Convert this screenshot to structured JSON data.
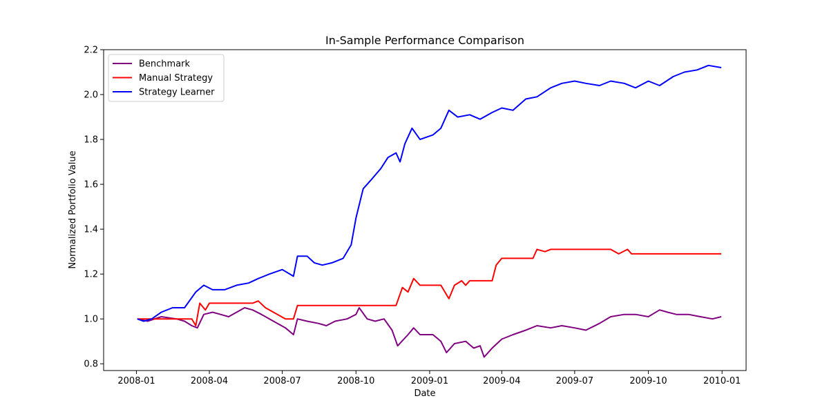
{
  "chart_data": {
    "type": "line",
    "title": "In-Sample Performance Comparison",
    "xlabel": "Date",
    "ylabel": "Normalized Portfolio Value",
    "xlim": [
      "2007-11-21",
      "2010-01-31"
    ],
    "ylim": [
      0.77,
      2.2
    ],
    "x_ticks": [
      "2008-01",
      "2008-04",
      "2008-07",
      "2008-10",
      "2009-01",
      "2009-04",
      "2009-07",
      "2009-10",
      "2010-01"
    ],
    "y_ticks": [
      "0.8",
      "1.0",
      "1.2",
      "1.4",
      "1.6",
      "1.8",
      "2.0",
      "2.2"
    ],
    "grid": false,
    "legend": "upper-left",
    "series": [
      {
        "name": "Benchmark",
        "color": "#800080",
        "points": [
          [
            "2008-01-02",
            1.0
          ],
          [
            "2008-01-15",
            0.99
          ],
          [
            "2008-02-01",
            1.01
          ],
          [
            "2008-02-20",
            1.0
          ],
          [
            "2008-03-01",
            0.99
          ],
          [
            "2008-03-10",
            0.97
          ],
          [
            "2008-03-17",
            0.96
          ],
          [
            "2008-03-25",
            1.02
          ],
          [
            "2008-04-05",
            1.03
          ],
          [
            "2008-04-15",
            1.02
          ],
          [
            "2008-04-25",
            1.01
          ],
          [
            "2008-05-05",
            1.03
          ],
          [
            "2008-05-15",
            1.05
          ],
          [
            "2008-05-25",
            1.04
          ],
          [
            "2008-06-05",
            1.02
          ],
          [
            "2008-06-15",
            1.0
          ],
          [
            "2008-06-25",
            0.98
          ],
          [
            "2008-07-05",
            0.96
          ],
          [
            "2008-07-15",
            0.93
          ],
          [
            "2008-07-20",
            1.0
          ],
          [
            "2008-08-01",
            0.99
          ],
          [
            "2008-08-15",
            0.98
          ],
          [
            "2008-08-25",
            0.97
          ],
          [
            "2008-09-05",
            0.99
          ],
          [
            "2008-09-20",
            1.0
          ],
          [
            "2008-10-01",
            1.02
          ],
          [
            "2008-10-05",
            1.05
          ],
          [
            "2008-10-15",
            1.0
          ],
          [
            "2008-10-25",
            0.99
          ],
          [
            "2008-11-05",
            1.0
          ],
          [
            "2008-11-15",
            0.95
          ],
          [
            "2008-11-22",
            0.88
          ],
          [
            "2008-12-05",
            0.93
          ],
          [
            "2008-12-12",
            0.96
          ],
          [
            "2008-12-20",
            0.93
          ],
          [
            "2009-01-05",
            0.93
          ],
          [
            "2009-01-15",
            0.9
          ],
          [
            "2009-01-22",
            0.85
          ],
          [
            "2009-02-01",
            0.89
          ],
          [
            "2009-02-15",
            0.9
          ],
          [
            "2009-02-25",
            0.87
          ],
          [
            "2009-03-05",
            0.88
          ],
          [
            "2009-03-10",
            0.83
          ],
          [
            "2009-03-20",
            0.87
          ],
          [
            "2009-04-01",
            0.91
          ],
          [
            "2009-04-15",
            0.93
          ],
          [
            "2009-05-01",
            0.95
          ],
          [
            "2009-05-15",
            0.97
          ],
          [
            "2009-06-01",
            0.96
          ],
          [
            "2009-06-15",
            0.97
          ],
          [
            "2009-07-01",
            0.96
          ],
          [
            "2009-07-15",
            0.95
          ],
          [
            "2009-08-01",
            0.98
          ],
          [
            "2009-08-15",
            1.01
          ],
          [
            "2009-09-01",
            1.02
          ],
          [
            "2009-09-15",
            1.02
          ],
          [
            "2009-10-01",
            1.01
          ],
          [
            "2009-10-15",
            1.04
          ],
          [
            "2009-10-25",
            1.03
          ],
          [
            "2009-11-05",
            1.02
          ],
          [
            "2009-11-20",
            1.02
          ],
          [
            "2009-12-05",
            1.01
          ],
          [
            "2009-12-20",
            1.0
          ],
          [
            "2009-12-31",
            1.01
          ]
        ]
      },
      {
        "name": "Manual Strategy",
        "color": "#ff0000",
        "points": [
          [
            "2008-01-02",
            1.0
          ],
          [
            "2008-02-15",
            1.0
          ],
          [
            "2008-03-10",
            1.0
          ],
          [
            "2008-03-15",
            0.97
          ],
          [
            "2008-03-20",
            1.07
          ],
          [
            "2008-03-27",
            1.04
          ],
          [
            "2008-04-01",
            1.07
          ],
          [
            "2008-05-25",
            1.07
          ],
          [
            "2008-06-01",
            1.08
          ],
          [
            "2008-06-10",
            1.05
          ],
          [
            "2008-06-20",
            1.03
          ],
          [
            "2008-07-05",
            1.0
          ],
          [
            "2008-07-15",
            1.0
          ],
          [
            "2008-07-20",
            1.06
          ],
          [
            "2008-11-20",
            1.06
          ],
          [
            "2008-11-28",
            1.14
          ],
          [
            "2008-12-05",
            1.12
          ],
          [
            "2008-12-12",
            1.18
          ],
          [
            "2008-12-20",
            1.15
          ],
          [
            "2009-01-15",
            1.15
          ],
          [
            "2009-01-25",
            1.09
          ],
          [
            "2009-02-01",
            1.15
          ],
          [
            "2009-02-10",
            1.17
          ],
          [
            "2009-02-15",
            1.15
          ],
          [
            "2009-02-20",
            1.17
          ],
          [
            "2009-03-20",
            1.17
          ],
          [
            "2009-03-25",
            1.24
          ],
          [
            "2009-04-01",
            1.27
          ],
          [
            "2009-05-10",
            1.27
          ],
          [
            "2009-05-15",
            1.31
          ],
          [
            "2009-05-25",
            1.3
          ],
          [
            "2009-06-01",
            1.31
          ],
          [
            "2009-08-15",
            1.31
          ],
          [
            "2009-08-25",
            1.29
          ],
          [
            "2009-09-05",
            1.31
          ],
          [
            "2009-09-10",
            1.29
          ],
          [
            "2009-12-31",
            1.29
          ]
        ]
      },
      {
        "name": "Strategy Learner",
        "color": "#0000ff",
        "points": [
          [
            "2008-01-02",
            1.0
          ],
          [
            "2008-01-10",
            0.99
          ],
          [
            "2008-01-20",
            1.0
          ],
          [
            "2008-02-01",
            1.03
          ],
          [
            "2008-02-15",
            1.05
          ],
          [
            "2008-03-01",
            1.05
          ],
          [
            "2008-03-15",
            1.12
          ],
          [
            "2008-03-25",
            1.15
          ],
          [
            "2008-04-05",
            1.13
          ],
          [
            "2008-04-20",
            1.13
          ],
          [
            "2008-05-05",
            1.15
          ],
          [
            "2008-05-20",
            1.16
          ],
          [
            "2008-06-01",
            1.18
          ],
          [
            "2008-06-15",
            1.2
          ],
          [
            "2008-07-01",
            1.22
          ],
          [
            "2008-07-15",
            1.19
          ],
          [
            "2008-07-20",
            1.28
          ],
          [
            "2008-08-01",
            1.28
          ],
          [
            "2008-08-10",
            1.25
          ],
          [
            "2008-08-20",
            1.24
          ],
          [
            "2008-09-01",
            1.25
          ],
          [
            "2008-09-15",
            1.27
          ],
          [
            "2008-09-25",
            1.33
          ],
          [
            "2008-10-01",
            1.45
          ],
          [
            "2008-10-10",
            1.58
          ],
          [
            "2008-10-20",
            1.62
          ],
          [
            "2008-11-01",
            1.67
          ],
          [
            "2008-11-10",
            1.72
          ],
          [
            "2008-11-20",
            1.74
          ],
          [
            "2008-11-25",
            1.7
          ],
          [
            "2008-12-01",
            1.78
          ],
          [
            "2008-12-10",
            1.85
          ],
          [
            "2008-12-20",
            1.8
          ],
          [
            "2009-01-05",
            1.82
          ],
          [
            "2009-01-15",
            1.85
          ],
          [
            "2009-01-25",
            1.93
          ],
          [
            "2009-02-05",
            1.9
          ],
          [
            "2009-02-20",
            1.91
          ],
          [
            "2009-03-05",
            1.89
          ],
          [
            "2009-03-20",
            1.92
          ],
          [
            "2009-04-01",
            1.94
          ],
          [
            "2009-04-15",
            1.93
          ],
          [
            "2009-05-01",
            1.98
          ],
          [
            "2009-05-15",
            1.99
          ],
          [
            "2009-06-01",
            2.03
          ],
          [
            "2009-06-15",
            2.05
          ],
          [
            "2009-07-01",
            2.06
          ],
          [
            "2009-07-15",
            2.05
          ],
          [
            "2009-08-01",
            2.04
          ],
          [
            "2009-08-15",
            2.06
          ],
          [
            "2009-09-01",
            2.05
          ],
          [
            "2009-09-15",
            2.03
          ],
          [
            "2009-10-01",
            2.06
          ],
          [
            "2009-10-15",
            2.04
          ],
          [
            "2009-11-01",
            2.08
          ],
          [
            "2009-11-15",
            2.1
          ],
          [
            "2009-12-01",
            2.11
          ],
          [
            "2009-12-15",
            2.13
          ],
          [
            "2009-12-31",
            2.12
          ]
        ]
      }
    ]
  }
}
